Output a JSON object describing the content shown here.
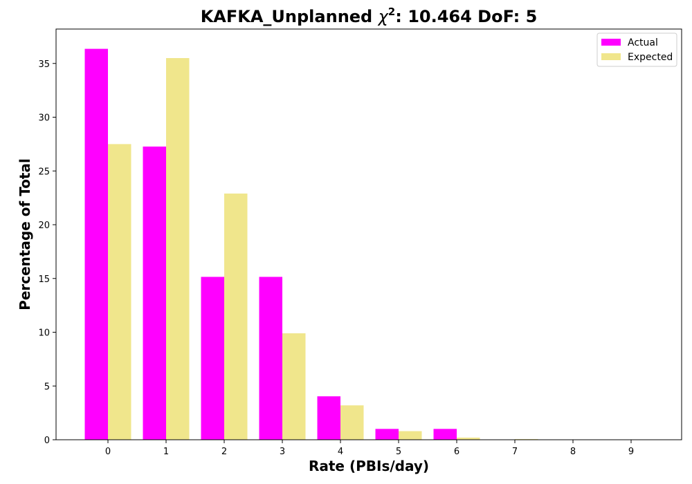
{
  "chart_data": {
    "type": "bar",
    "title": "KAFKA_Unplanned χ²: 10.464 DoF: 5",
    "title_parts": {
      "prefix": "KAFKA_Unplanned ",
      "chi": "χ",
      "sup": "2",
      "suffix": ": 10.464 DoF: 5"
    },
    "xlabel": "Rate (PBIs/day)",
    "ylabel": "Percentage of Total",
    "categories": [
      "0",
      "1",
      "2",
      "3",
      "4",
      "5",
      "6",
      "7",
      "8",
      "9"
    ],
    "series": [
      {
        "name": "Actual",
        "color": "#ff00ff",
        "values": [
          36.36,
          27.27,
          15.15,
          15.15,
          4.04,
          1.01,
          1.01,
          0,
          0,
          0
        ]
      },
      {
        "name": "Expected",
        "color": "#f0e68c",
        "values": [
          27.5,
          35.5,
          22.9,
          9.9,
          3.2,
          0.8,
          0.2,
          0.06,
          0,
          0
        ]
      }
    ],
    "ylim": [
      0,
      38.2
    ],
    "yticks": [
      0,
      5,
      10,
      15,
      20,
      25,
      30,
      35
    ],
    "grid": false,
    "legend_position": "top-right"
  }
}
